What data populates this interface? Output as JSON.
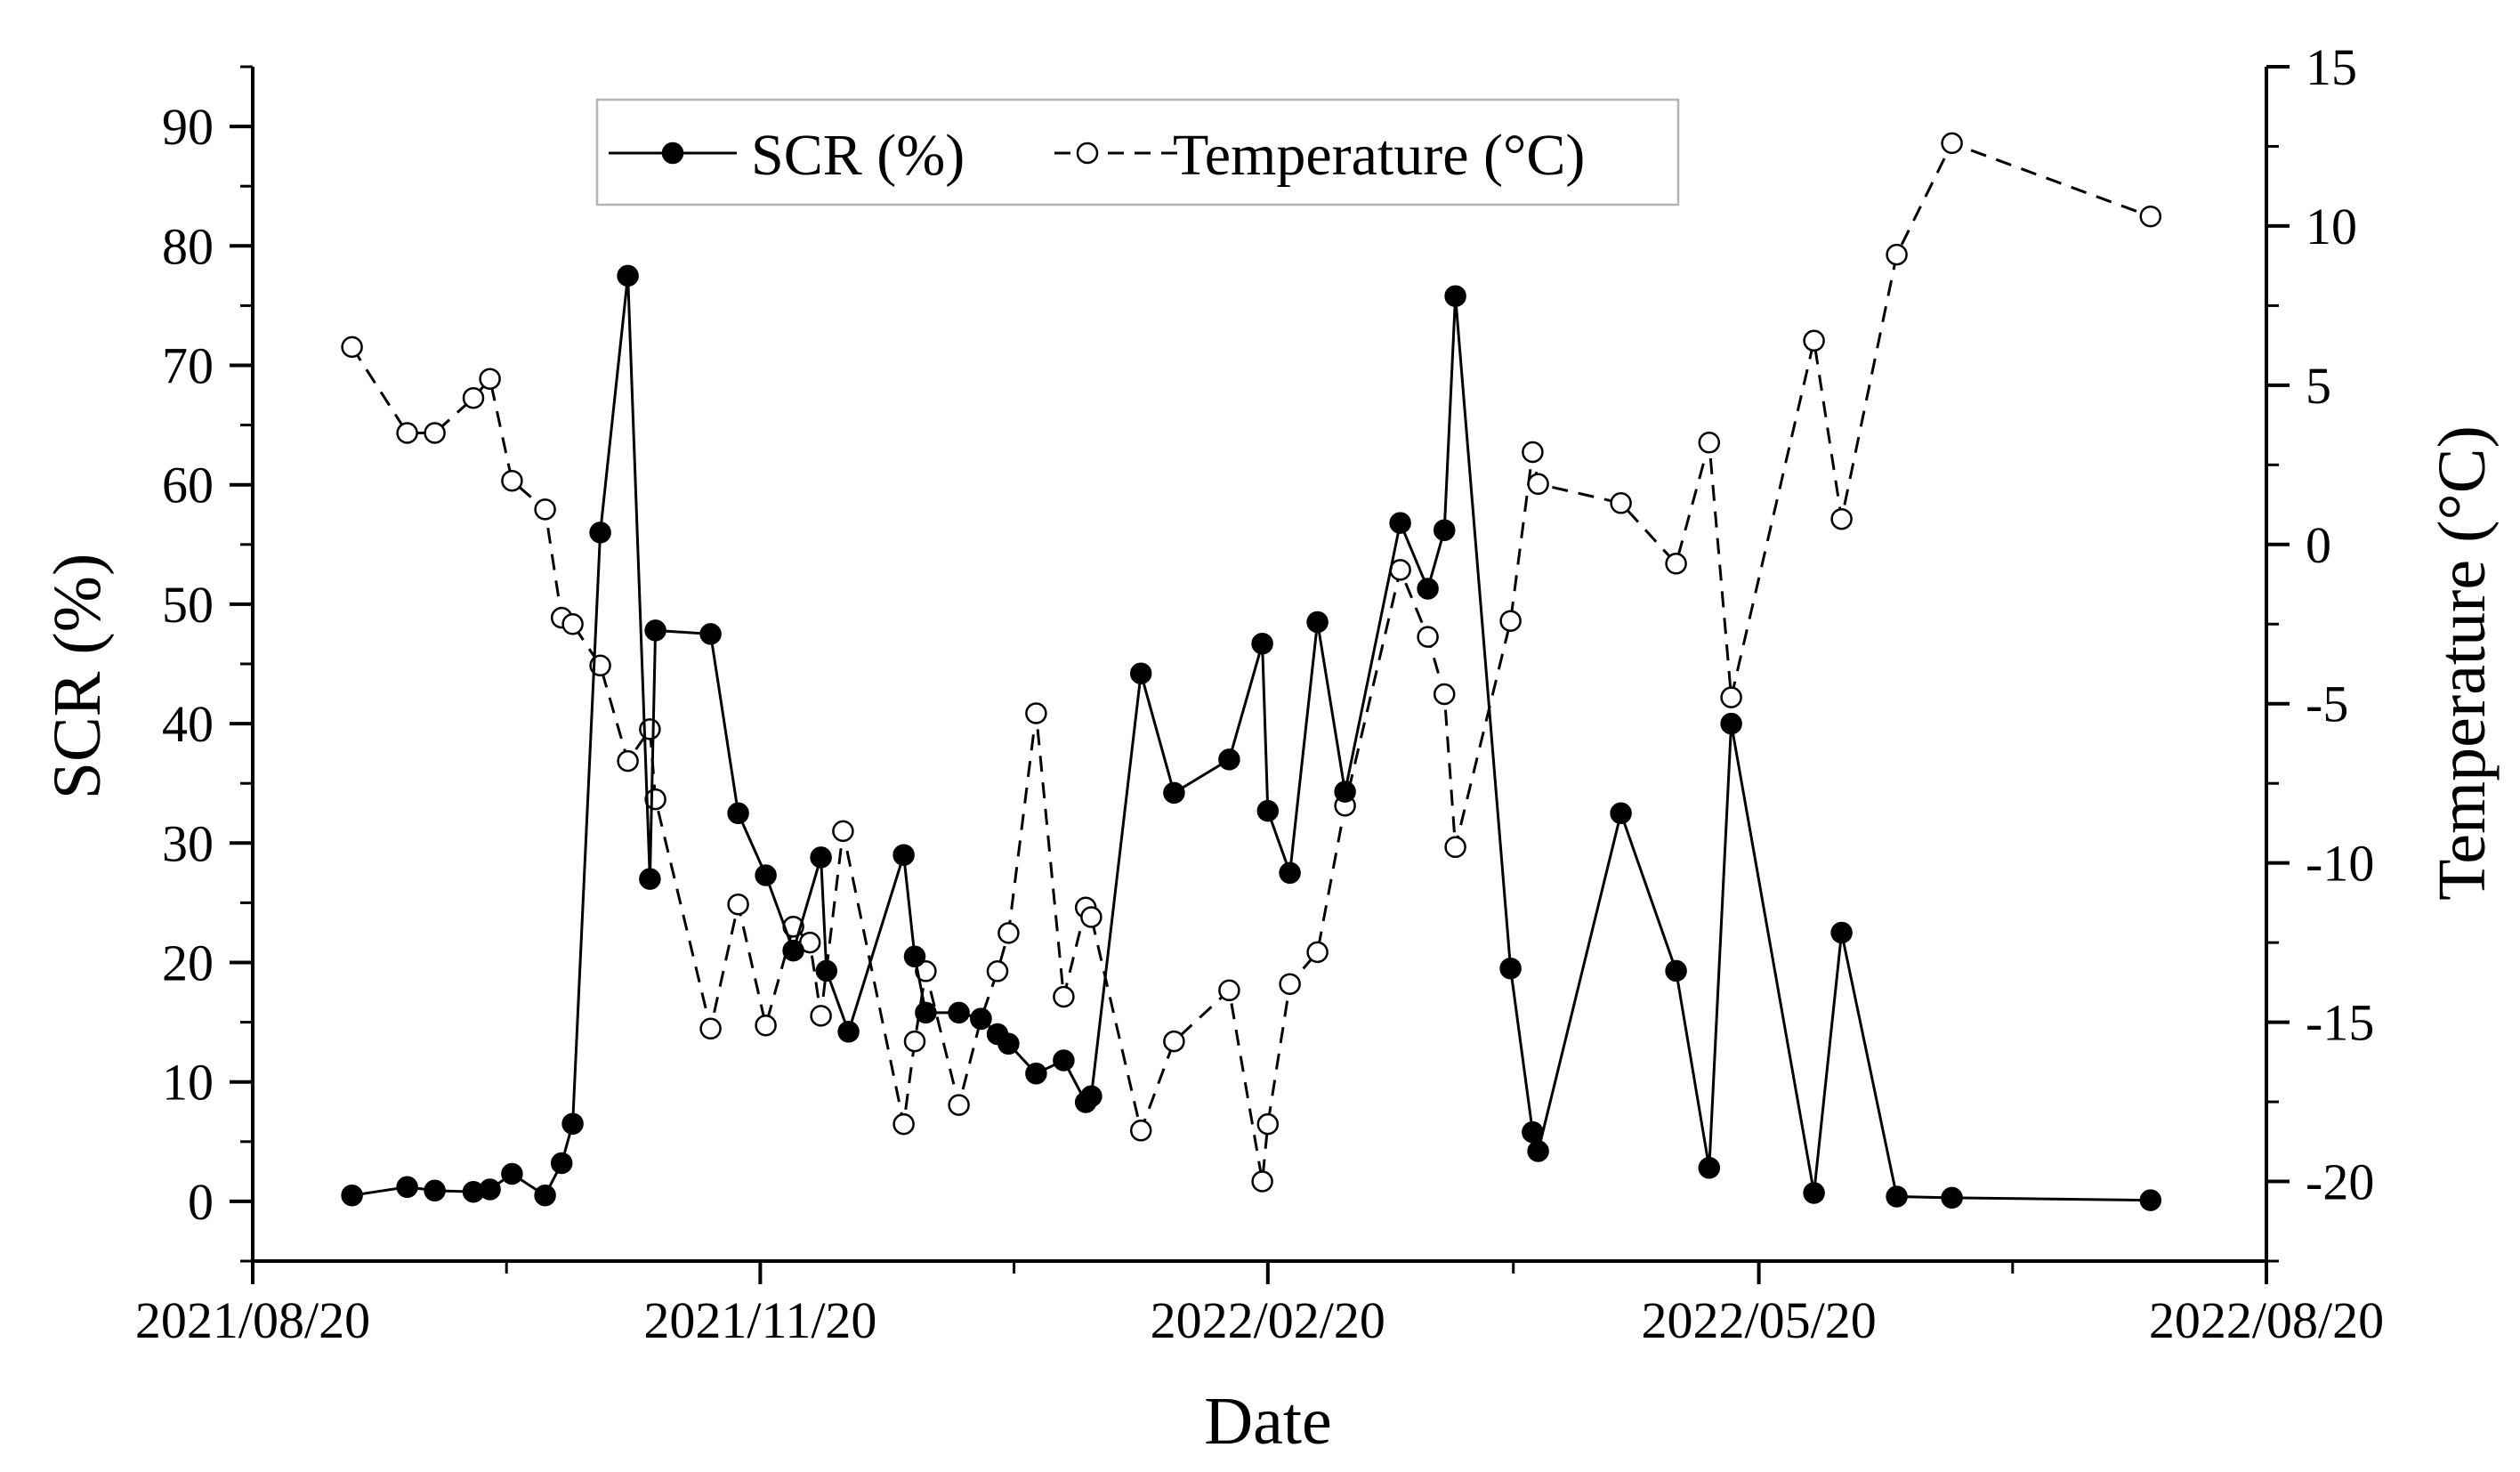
{
  "chart_data": {
    "type": "line",
    "x_axis": {
      "label": "Date",
      "range": [
        "2021/08/20",
        "2022/08/20"
      ],
      "major_ticks": [
        "2021/08/20",
        "2021/11/20",
        "2022/02/20",
        "2022/05/20",
        "2022/08/20"
      ]
    },
    "y_left": {
      "label": "SCR (%)",
      "range": [
        -5,
        95
      ],
      "ticks": [
        0,
        10,
        20,
        30,
        40,
        50,
        60,
        70,
        80,
        90
      ],
      "tick_labels": [
        "0",
        "10",
        "20",
        "30",
        "40",
        "50",
        "60",
        "70",
        "80",
        "90"
      ]
    },
    "y_right": {
      "label": "Temperature (°C)",
      "range": [
        -22.5,
        15
      ],
      "ticks": [
        -20,
        -15,
        -10,
        -5,
        0,
        5,
        10,
        15
      ],
      "tick_labels": [
        "-20",
        "-15",
        "-10",
        "-5",
        "0",
        "5",
        "10",
        "15"
      ]
    },
    "legend": {
      "position": "top-center",
      "frame": true
    },
    "series": [
      {
        "name": "SCR (%)",
        "axis": "left",
        "style": "solid",
        "marker": "filled-circle",
        "color": "#000000",
        "points": [
          [
            "2021-09-07",
            0.5
          ],
          [
            "2021-09-17",
            1.2
          ],
          [
            "2021-09-22",
            0.9
          ],
          [
            "2021-09-29",
            0.8
          ],
          [
            "2021-10-02",
            1.0
          ],
          [
            "2021-10-06",
            2.3
          ],
          [
            "2021-10-12",
            0.5
          ],
          [
            "2021-10-15",
            3.2
          ],
          [
            "2021-10-17",
            6.5
          ],
          [
            "2021-10-22",
            56.0
          ],
          [
            "2021-10-27",
            77.5
          ],
          [
            "2021-10-31",
            27.0
          ],
          [
            "2021-11-01",
            47.8
          ],
          [
            "2021-11-11",
            47.5
          ],
          [
            "2021-11-16",
            32.5
          ],
          [
            "2021-11-21",
            27.3
          ],
          [
            "2021-11-26",
            21.0
          ],
          [
            "2021-12-01",
            28.8
          ],
          [
            "2021-12-02",
            19.3
          ],
          [
            "2021-12-06",
            14.2
          ],
          [
            "2021-12-16",
            29.0
          ],
          [
            "2021-12-18",
            20.5
          ],
          [
            "2021-12-20",
            15.8
          ],
          [
            "2021-12-26",
            15.8
          ],
          [
            "2021-12-30",
            15.3
          ],
          [
            "2022-01-02",
            14.0
          ],
          [
            "2022-01-04",
            13.2
          ],
          [
            "2022-01-09",
            10.7
          ],
          [
            "2022-01-14",
            11.8
          ],
          [
            "2022-01-18",
            8.3
          ],
          [
            "2022-01-19",
            8.8
          ],
          [
            "2022-01-28",
            44.2
          ],
          [
            "2022-02-03",
            34.2
          ],
          [
            "2022-02-13",
            37.0
          ],
          [
            "2022-02-19",
            46.7
          ],
          [
            "2022-02-20",
            32.7
          ],
          [
            "2022-02-24",
            27.5
          ],
          [
            "2022-03-01",
            48.5
          ],
          [
            "2022-03-06",
            34.3
          ],
          [
            "2022-03-16",
            56.8
          ],
          [
            "2022-03-21",
            51.3
          ],
          [
            "2022-03-24",
            56.2
          ],
          [
            "2022-03-26",
            75.8
          ],
          [
            "2022-04-05",
            19.5
          ],
          [
            "2022-04-09",
            5.8
          ],
          [
            "2022-04-10",
            4.2
          ],
          [
            "2022-04-25",
            32.5
          ],
          [
            "2022-05-05",
            19.3
          ],
          [
            "2022-05-11",
            2.8
          ],
          [
            "2022-05-15",
            40.0
          ],
          [
            "2022-05-30",
            0.7
          ],
          [
            "2022-06-04",
            22.5
          ],
          [
            "2022-06-14",
            0.4
          ],
          [
            "2022-06-24",
            0.3
          ],
          [
            "2022-07-30",
            0.1
          ]
        ]
      },
      {
        "name": "Temperature (°C)",
        "axis": "right",
        "style": "dashed",
        "marker": "open-circle",
        "color": "#000000",
        "points": [
          [
            "2021-09-07",
            6.2
          ],
          [
            "2021-09-17",
            3.5
          ],
          [
            "2021-09-22",
            3.5
          ],
          [
            "2021-09-29",
            4.6
          ],
          [
            "2021-10-02",
            5.2
          ],
          [
            "2021-10-06",
            2.0
          ],
          [
            "2021-10-12",
            1.1
          ],
          [
            "2021-10-15",
            -2.3
          ],
          [
            "2021-10-17",
            -2.5
          ],
          [
            "2021-10-22",
            -3.8
          ],
          [
            "2021-10-27",
            -6.8
          ],
          [
            "2021-10-31",
            -5.8
          ],
          [
            "2021-11-01",
            -8.0
          ],
          [
            "2021-11-11",
            -15.2
          ],
          [
            "2021-11-16",
            -11.3
          ],
          [
            "2021-11-21",
            -15.1
          ],
          [
            "2021-11-26",
            -12.0
          ],
          [
            "2021-11-29",
            -12.5
          ],
          [
            "2021-12-01",
            -14.8
          ],
          [
            "2021-12-05",
            -9.0
          ],
          [
            "2021-12-16",
            -18.2
          ],
          [
            "2021-12-18",
            -15.6
          ],
          [
            "2021-12-20",
            -13.4
          ],
          [
            "2021-12-26",
            -17.6
          ],
          [
            "2021-12-30",
            -14.9
          ],
          [
            "2022-01-02",
            -13.4
          ],
          [
            "2022-01-04",
            -12.2
          ],
          [
            "2022-01-09",
            -5.3
          ],
          [
            "2022-01-14",
            -14.2
          ],
          [
            "2022-01-18",
            -11.4
          ],
          [
            "2022-01-19",
            -11.7
          ],
          [
            "2022-01-28",
            -18.4
          ],
          [
            "2022-02-03",
            -15.6
          ],
          [
            "2022-02-13",
            -14.0
          ],
          [
            "2022-02-19",
            -20.0
          ],
          [
            "2022-02-20",
            -18.2
          ],
          [
            "2022-02-24",
            -13.8
          ],
          [
            "2022-03-01",
            -12.8
          ],
          [
            "2022-03-06",
            -8.2
          ],
          [
            "2022-03-16",
            -0.8
          ],
          [
            "2022-03-21",
            -2.9
          ],
          [
            "2022-03-24",
            -4.7
          ],
          [
            "2022-03-26",
            -9.5
          ],
          [
            "2022-04-05",
            -2.4
          ],
          [
            "2022-04-09",
            2.9
          ],
          [
            "2022-04-10",
            1.9
          ],
          [
            "2022-04-25",
            1.3
          ],
          [
            "2022-05-05",
            -0.6
          ],
          [
            "2022-05-11",
            3.2
          ],
          [
            "2022-05-15",
            -4.8
          ],
          [
            "2022-05-30",
            6.4
          ],
          [
            "2022-06-04",
            0.8
          ],
          [
            "2022-06-14",
            9.1
          ],
          [
            "2022-06-24",
            12.6
          ],
          [
            "2022-07-30",
            10.3
          ]
        ]
      }
    ]
  }
}
